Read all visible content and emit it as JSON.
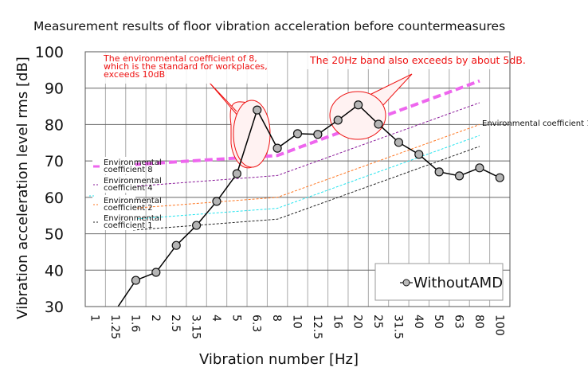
{
  "chart_data": {
    "type": "line",
    "title": "Measurement results of floor vibration acceleration before countermeasures",
    "xlabel": "Vibration number [Hz]",
    "ylabel": "Vibration acceleration level rms [dB]",
    "ylim": [
      30,
      100
    ],
    "yticks": [
      "100",
      "90",
      "80",
      "70",
      "60",
      "50",
      "40",
      "30"
    ],
    "ytick_values": [
      100,
      90,
      80,
      70,
      60,
      50,
      40,
      30
    ],
    "grid": true,
    "categories": [
      "1",
      "1.25",
      "1.6",
      "2",
      "2.5",
      "3.15",
      "4",
      "5",
      "6.3",
      "8",
      "10",
      "12.5",
      "16",
      "20",
      "25",
      "31.5",
      "40",
      "50",
      "63",
      "80",
      "100"
    ],
    "series": [
      {
        "name": "WithoutAMD",
        "color": "#000000",
        "marker": "circle",
        "values": [
          null,
          29,
          37.2,
          39.4,
          46.8,
          52.3,
          58.9,
          66.5,
          84.0,
          73.5,
          77.5,
          77.3,
          81.2,
          85.4,
          80.1,
          75.1,
          71.8,
          67.0,
          65.9,
          68.1,
          65.4
        ]
      }
    ],
    "reference_lines": [
      {
        "name": "Environmental coefficient 8",
        "label_lines": [
          "Environmental",
          "coefficient 8"
        ],
        "color": "#ee66ee",
        "style": "thick-dash",
        "points": [
          {
            "x": "1",
            "y": 69
          },
          {
            "x": "8",
            "y": 71.5
          },
          {
            "x": "80",
            "y": 92
          }
        ]
      },
      {
        "name": "Environmental coefficient 4",
        "label_lines": [
          "Environmental",
          "coefficient 4"
        ],
        "color": "#8a1a9a",
        "style": "dash",
        "points": [
          {
            "x": "1",
            "y": 63
          },
          {
            "x": "8",
            "y": 66
          },
          {
            "x": "80",
            "y": 86
          }
        ]
      },
      {
        "name": "Environmental coefficient 2",
        "label_lines": [
          "Environmental",
          "coefficient 2"
        ],
        "color": "#ff7722",
        "style": "dash",
        "points": [
          {
            "x": "1",
            "y": 57
          },
          {
            "x": "8",
            "y": 60
          },
          {
            "x": "80",
            "y": 80
          }
        ]
      },
      {
        "name": "Environmental coefficient 1.4",
        "label_lines": [
          "Environmental coefficient 1.4"
        ],
        "color": "#22e4ee",
        "style": "dash",
        "points": [
          {
            "x": "1",
            "y": 54
          },
          {
            "x": "8",
            "y": 57
          },
          {
            "x": "80",
            "y": 77
          }
        ]
      },
      {
        "name": "Environmental coefficient 1",
        "label_lines": [
          "Environmental",
          "coefficient 1"
        ],
        "color": "#222222",
        "style": "dash",
        "points": [
          {
            "x": "1",
            "y": 51
          },
          {
            "x": "8",
            "y": 54
          },
          {
            "x": "80",
            "y": 74
          }
        ]
      }
    ],
    "annotations": [
      {
        "lines": [
          "The environmental coefficient of 8,",
          "which is the standard for workplaces,",
          "exceeds 10dB"
        ],
        "target": "6.3",
        "color": "#ee1111"
      },
      {
        "lines": [
          "The 20Hz band also exceeds by about 5dB."
        ],
        "target": "20",
        "color": "#ee1111"
      }
    ],
    "legend": {
      "position": "bottom-right",
      "entries": [
        "WithoutAMD"
      ]
    }
  }
}
